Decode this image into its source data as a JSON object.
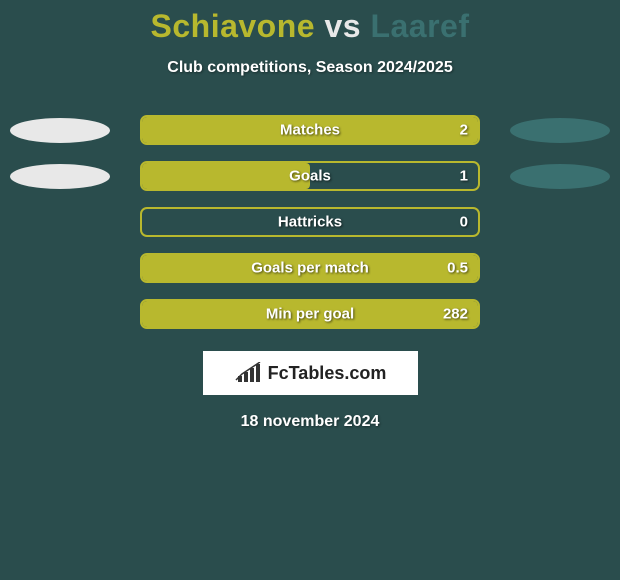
{
  "title": {
    "player1": "Schiavone",
    "vs": "vs",
    "player2": "Laaref",
    "player1_color": "#b8b82e",
    "vs_color": "#e8e8e8",
    "player2_color": "#3a7070",
    "fontsize": 32
  },
  "subtitle": "Club competitions, Season 2024/2025",
  "background_color": "#2a4d4d",
  "bar_border_color": "#b8b82e",
  "bar_fill_color": "#b8b82e",
  "ellipse_left_color": "#e8e8e8",
  "ellipse_right_color": "#3a7070",
  "stats": [
    {
      "label": "Matches",
      "value": "2",
      "fill_pct": 100,
      "show_left_ellipse": true,
      "show_right_ellipse": true
    },
    {
      "label": "Goals",
      "value": "1",
      "fill_pct": 50,
      "show_left_ellipse": true,
      "show_right_ellipse": true
    },
    {
      "label": "Hattricks",
      "value": "0",
      "fill_pct": 0,
      "show_left_ellipse": false,
      "show_right_ellipse": false
    },
    {
      "label": "Goals per match",
      "value": "0.5",
      "fill_pct": 100,
      "show_left_ellipse": false,
      "show_right_ellipse": false
    },
    {
      "label": "Min per goal",
      "value": "282",
      "fill_pct": 100,
      "show_left_ellipse": false,
      "show_right_ellipse": false
    }
  ],
  "logo": {
    "text": "FcTables.com",
    "text_color": "#222222",
    "box_bg": "#ffffff",
    "icon_color": "#333333"
  },
  "date": "18 november 2024"
}
